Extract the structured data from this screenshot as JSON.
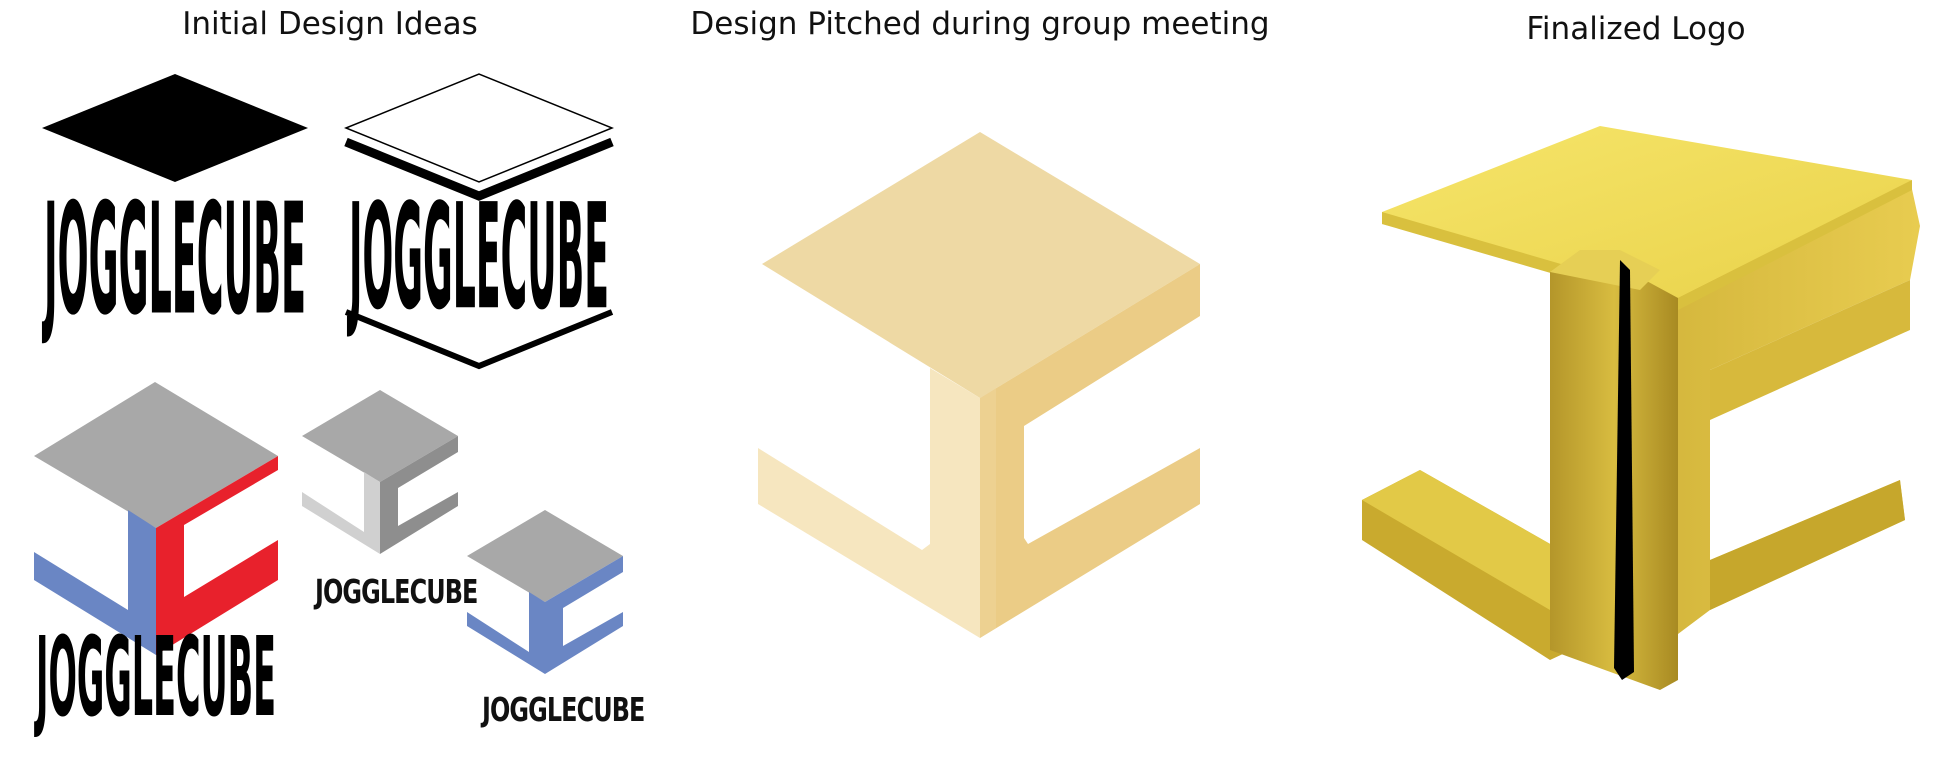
{
  "headings": {
    "initial": "Initial Design Ideas",
    "pitched": "Design Pitched during group meeting",
    "final": "Finalized Logo"
  },
  "logo_word": "JOGGLECUBE",
  "colors": {
    "blue": "#6a86c4",
    "red": "#e8212c",
    "grey_top": "#a8a8a8",
    "grey_light": "#d0d0d0",
    "grey_dark": "#8e8e8e",
    "cream_top": "#eed9a4",
    "cream_left": "#f6e6bf",
    "cream_right": "#ebcc86",
    "gold_top": "#f2e05c",
    "gold_left": "#d9bb3a",
    "gold_right": "#c4a628",
    "black": "#000000"
  }
}
